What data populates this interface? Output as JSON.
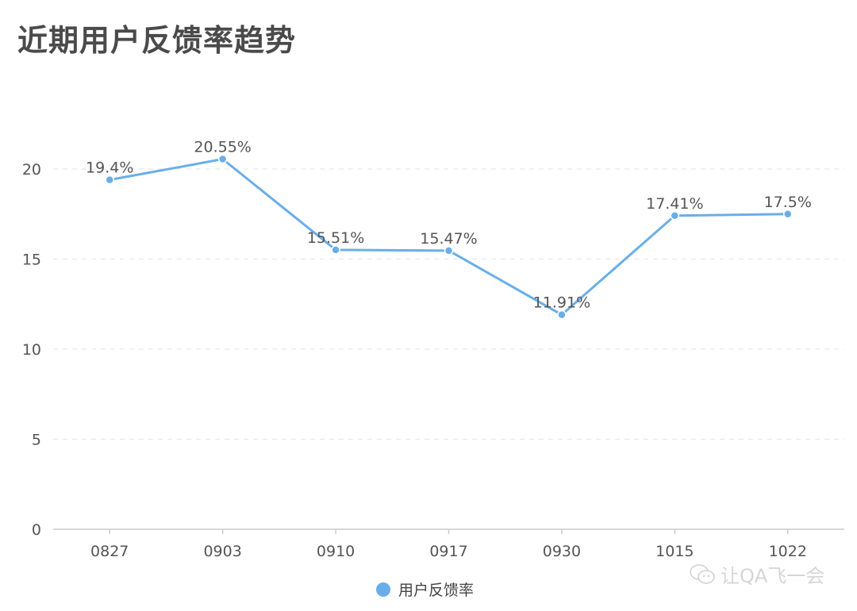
{
  "title": "近期用户反馈率趋势",
  "legend": {
    "label": "用户反馈率",
    "color": "#6aaee9"
  },
  "watermark": {
    "text": "让QA飞一会",
    "icon": "wechat-icon"
  },
  "colors": {
    "line": "#6aaee9",
    "grid": "#e6e6e6",
    "axis": "#cccccc",
    "text": "#555555",
    "title": "#4a4a4a"
  },
  "chart_data": {
    "type": "line",
    "title": "近期用户反馈率趋势",
    "xlabel": "",
    "ylabel": "",
    "categories": [
      "0827",
      "0903",
      "0910",
      "0917",
      "0930",
      "1015",
      "1022"
    ],
    "series": [
      {
        "name": "用户反馈率",
        "values": [
          19.4,
          20.55,
          15.51,
          15.47,
          11.91,
          17.41,
          17.5
        ],
        "labels": [
          "19.4%",
          "20.55%",
          "15.51%",
          "15.47%",
          "11.91%",
          "17.41%",
          "17.5%"
        ]
      }
    ],
    "yticks": [
      0,
      5,
      10,
      15,
      20
    ],
    "ylim": [
      0,
      20
    ],
    "grid": true,
    "grid_style": "dashed",
    "legend_position": "bottom"
  }
}
